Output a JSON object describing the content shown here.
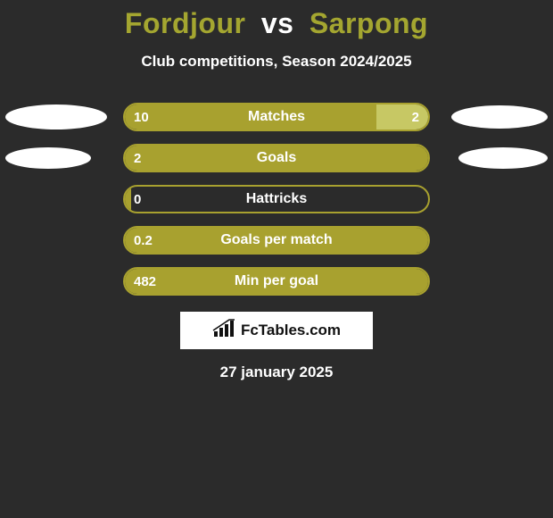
{
  "title": {
    "player1": "Fordjour",
    "vs": "vs",
    "player2": "Sarpong"
  },
  "subtitle": "Club competitions, Season 2024/2025",
  "colors": {
    "background": "#2b2b2b",
    "olive": "#a8a12f",
    "olive_border": "#a8a12f",
    "right_fill": "#c7c864",
    "ellipse": "#ffffff",
    "text": "#ffffff",
    "brand_bg": "#ffffff",
    "brand_text": "#111111"
  },
  "ellipses": {
    "row0": {
      "left_w": 114,
      "left_h": 28,
      "right_w": 108,
      "right_h": 26
    },
    "row1": {
      "left_w": 96,
      "left_h": 24,
      "right_w": 100,
      "right_h": 24
    }
  },
  "rows": [
    {
      "label": "Matches",
      "left_value": "10",
      "right_value": "2",
      "left_pct": 83,
      "right_pct": 17,
      "show_right": true,
      "has_ellipses": true
    },
    {
      "label": "Goals",
      "left_value": "2",
      "right_value": "",
      "left_pct": 100,
      "right_pct": 0,
      "show_right": false,
      "has_ellipses": true
    },
    {
      "label": "Hattricks",
      "left_value": "0",
      "right_value": "",
      "left_pct": 2,
      "right_pct": 0,
      "show_right": false,
      "has_ellipses": false
    },
    {
      "label": "Goals per match",
      "left_value": "0.2",
      "right_value": "",
      "left_pct": 100,
      "right_pct": 0,
      "show_right": false,
      "has_ellipses": false
    },
    {
      "label": "Min per goal",
      "left_value": "482",
      "right_value": "",
      "left_pct": 100,
      "right_pct": 0,
      "show_right": false,
      "has_ellipses": false
    }
  ],
  "brand": "FcTables.com",
  "date": "27 january 2025"
}
